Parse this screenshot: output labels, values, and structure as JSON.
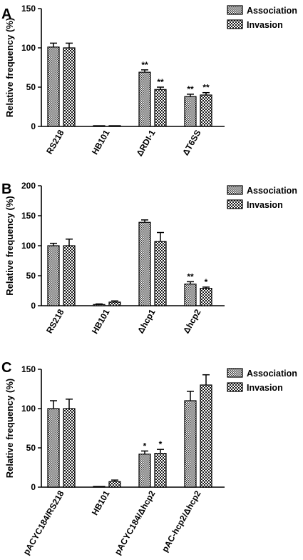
{
  "chart_data": [
    {
      "type": "bar",
      "panel": "A",
      "ylabel": "Relative frequency (%)",
      "ylim": [
        0,
        150
      ],
      "yticks": [
        "0",
        "50",
        "100",
        "150"
      ],
      "categories": [
        "RS218",
        "HB101",
        "ΔRDI-1",
        "ΔT6SS"
      ],
      "series": [
        {
          "name": "Association",
          "values": [
            101,
            1,
            69,
            38
          ],
          "errors": [
            5,
            0.5,
            3,
            3
          ],
          "marks": [
            "",
            "",
            "**",
            "**"
          ]
        },
        {
          "name": "Invasion",
          "values": [
            100,
            1,
            47,
            40
          ],
          "errors": [
            6,
            0.5,
            3,
            3
          ],
          "marks": [
            "",
            "",
            "**",
            "**"
          ]
        }
      ],
      "legend": "top-right"
    },
    {
      "type": "bar",
      "panel": "B",
      "ylabel": "Relative frequency (%)",
      "ylim": [
        0,
        200
      ],
      "yticks": [
        "0",
        "50",
        "100",
        "150",
        "200"
      ],
      "categories": [
        "RS218",
        "HB101",
        "Δhcp1",
        "Δhcp2"
      ],
      "series": [
        {
          "name": "Association",
          "values": [
            100,
            2,
            139,
            36
          ],
          "errors": [
            4,
            1,
            4,
            4
          ],
          "marks": [
            "",
            "",
            "",
            "**"
          ]
        },
        {
          "name": "Invasion",
          "values": [
            100,
            6,
            107,
            29
          ],
          "errors": [
            11,
            2,
            15,
            2
          ],
          "marks": [
            "",
            "",
            "",
            "*"
          ]
        }
      ],
      "legend": "top-right"
    },
    {
      "type": "bar",
      "panel": "C",
      "ylabel": "Relative frequency (%)",
      "ylim": [
        0,
        150
      ],
      "yticks": [
        "0",
        "50",
        "100",
        "150"
      ],
      "categories": [
        "pACYC184/RS218",
        "HB101",
        "pACYC184/Δhcp2",
        "pAC-hcp2/Δhcp2"
      ],
      "series": [
        {
          "name": "Association",
          "values": [
            100,
            1,
            42,
            110
          ],
          "errors": [
            10,
            0.5,
            4,
            12
          ],
          "marks": [
            "",
            "",
            "*",
            ""
          ]
        },
        {
          "name": "Invasion",
          "values": [
            100,
            7,
            43,
            130
          ],
          "errors": [
            12,
            2,
            5,
            13
          ],
          "marks": [
            "",
            "",
            "*",
            ""
          ]
        }
      ],
      "legend": "top-right"
    }
  ]
}
